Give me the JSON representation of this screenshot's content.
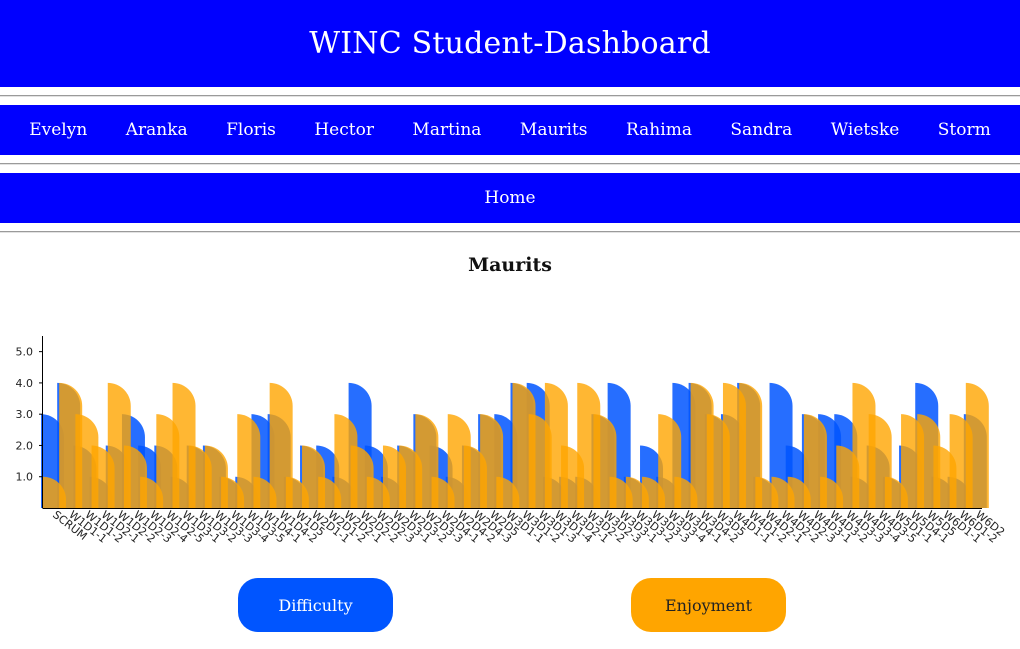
{
  "header": {
    "title": "WINC Student-Dashboard"
  },
  "nav": {
    "students": [
      "Evelyn",
      "Aranka",
      "Floris",
      "Hector",
      "Martina",
      "Maurits",
      "Rahima",
      "Sandra",
      "Wietske",
      "Storm"
    ],
    "home": "Home"
  },
  "page": {
    "student_name": "Maurits"
  },
  "buttons": {
    "difficulty": "Difficulty",
    "enjoyment": "Enjoyment"
  },
  "colors": {
    "header_bg": "#0000ff",
    "difficulty": "#0055ff",
    "enjoyment": "#ffa500"
  },
  "chart_data": {
    "type": "bar",
    "title": "",
    "xlabel": "",
    "ylabel": "",
    "ylim": [
      0,
      5.5
    ],
    "y_ticks": [
      "1.0",
      "2.0",
      "3.0",
      "4.0",
      "5.0"
    ],
    "grid": false,
    "legend": "none",
    "categories": [
      "SCRUM",
      "W1D1-1",
      "W1D1-2",
      "W1D2-1",
      "W1D2-2",
      "W1D2-3",
      "W1D2-4",
      "W1D2-5",
      "W1D3-1",
      "W1D3-2",
      "W1D3-3",
      "W1D3-4",
      "W1D3-5",
      "W1D4-1",
      "W1D4-2",
      "W1D5",
      "W2D1-1",
      "W2D1-2",
      "W2D2-1",
      "W2D2-2",
      "W2D2-3",
      "W2D3-1",
      "W2D3-2",
      "W2D3-3",
      "W2D4-1",
      "W2D4-2",
      "W2D4-3",
      "W2D5",
      "W3D1-1",
      "W3D1-2",
      "W3D1-3",
      "W3D1-4",
      "W3D2-1",
      "W3D2-2",
      "W3D2-3",
      "W3D3-1",
      "W3D3-2",
      "W3D3-3",
      "W3D3-4",
      "W3D4-1",
      "W3D4-2",
      "W3D5",
      "W4D1-1",
      "W4D1-2",
      "W4D2-1",
      "W4D2-2",
      "W4D2-3",
      "W4D3-1",
      "W4D3-2",
      "W4D3-3",
      "W4D3-4",
      "W4D3-5",
      "W5D1-1",
      "W5D4-1",
      "W5D5",
      "W6D1-1",
      "W6D1-2",
      "W6D2"
    ],
    "series": [
      {
        "name": "Difficulty",
        "values": [
          3,
          4,
          2,
          1,
          2,
          3,
          2,
          2,
          1,
          2,
          2,
          1,
          1,
          3,
          3,
          1,
          2,
          2,
          1,
          4,
          2,
          1,
          2,
          3,
          2,
          1,
          2,
          3,
          3,
          4,
          4,
          1,
          1,
          1,
          3,
          4,
          1,
          2,
          1,
          4,
          4,
          3,
          3,
          4,
          1,
          4,
          2,
          3,
          3,
          3,
          1,
          2,
          1,
          2,
          4,
          1,
          1,
          3
        ]
      },
      {
        "name": "Enjoyment",
        "values": [
          1,
          4,
          3,
          2,
          4,
          2,
          1,
          3,
          4,
          2,
          2,
          1,
          3,
          1,
          4,
          1,
          2,
          1,
          3,
          2,
          1,
          2,
          2,
          3,
          1,
          3,
          2,
          3,
          1,
          4,
          3,
          4,
          2,
          4,
          3,
          1,
          1,
          1,
          3,
          1,
          4,
          3,
          4,
          4,
          1,
          1,
          1,
          3,
          1,
          2,
          4,
          3,
          1,
          3,
          3,
          2,
          3,
          4
        ]
      }
    ]
  }
}
